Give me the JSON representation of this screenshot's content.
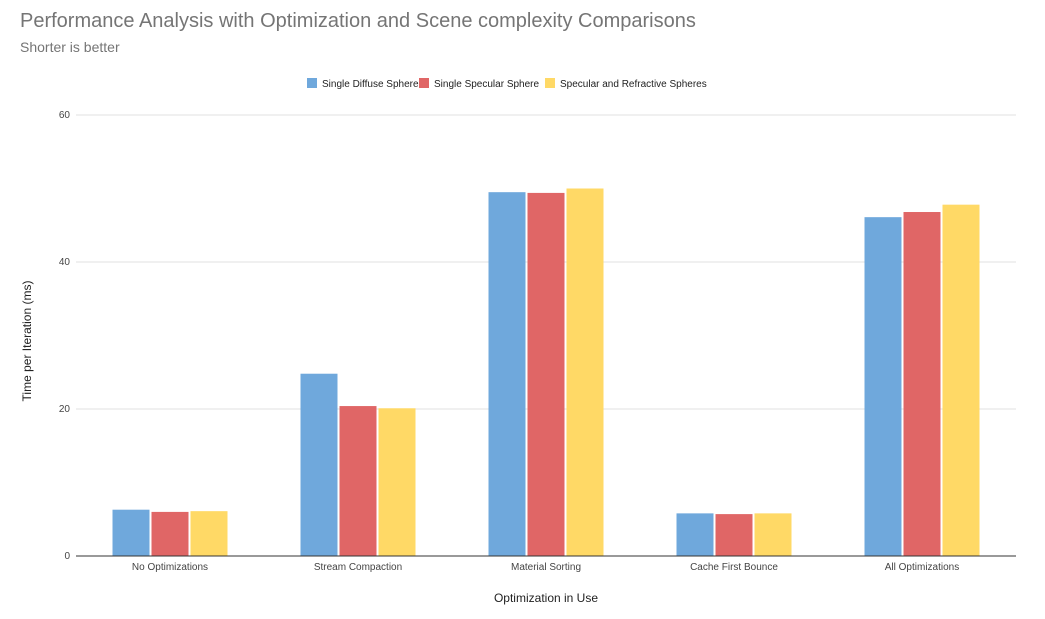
{
  "chart_data": {
    "type": "bar",
    "title": "Performance Analysis with Optimization and Scene complexity Comparisons",
    "subtitle": "Shorter is better",
    "xlabel": "Optimization in Use",
    "ylabel": "Time per Iteration (ms)",
    "ylim": [
      0,
      60
    ],
    "yticks": [
      0,
      20,
      40,
      60
    ],
    "grid": true,
    "legend_position": "top",
    "categories": [
      "No Optimizations",
      "Stream Compaction",
      "Material Sorting",
      "Cache First Bounce",
      "All Optimizations"
    ],
    "series": [
      {
        "name": "Single Diffuse Sphere",
        "color": "#6fa8dc",
        "values": [
          6.3,
          24.8,
          49.5,
          5.8,
          46.1
        ]
      },
      {
        "name": "Single Specular Sphere",
        "color": "#e06666",
        "values": [
          6.0,
          20.4,
          49.4,
          5.7,
          46.8
        ]
      },
      {
        "name": "Specular and Refractive Spheres",
        "color": "#ffd966",
        "values": [
          6.1,
          20.1,
          50.0,
          5.8,
          47.8
        ]
      }
    ]
  }
}
